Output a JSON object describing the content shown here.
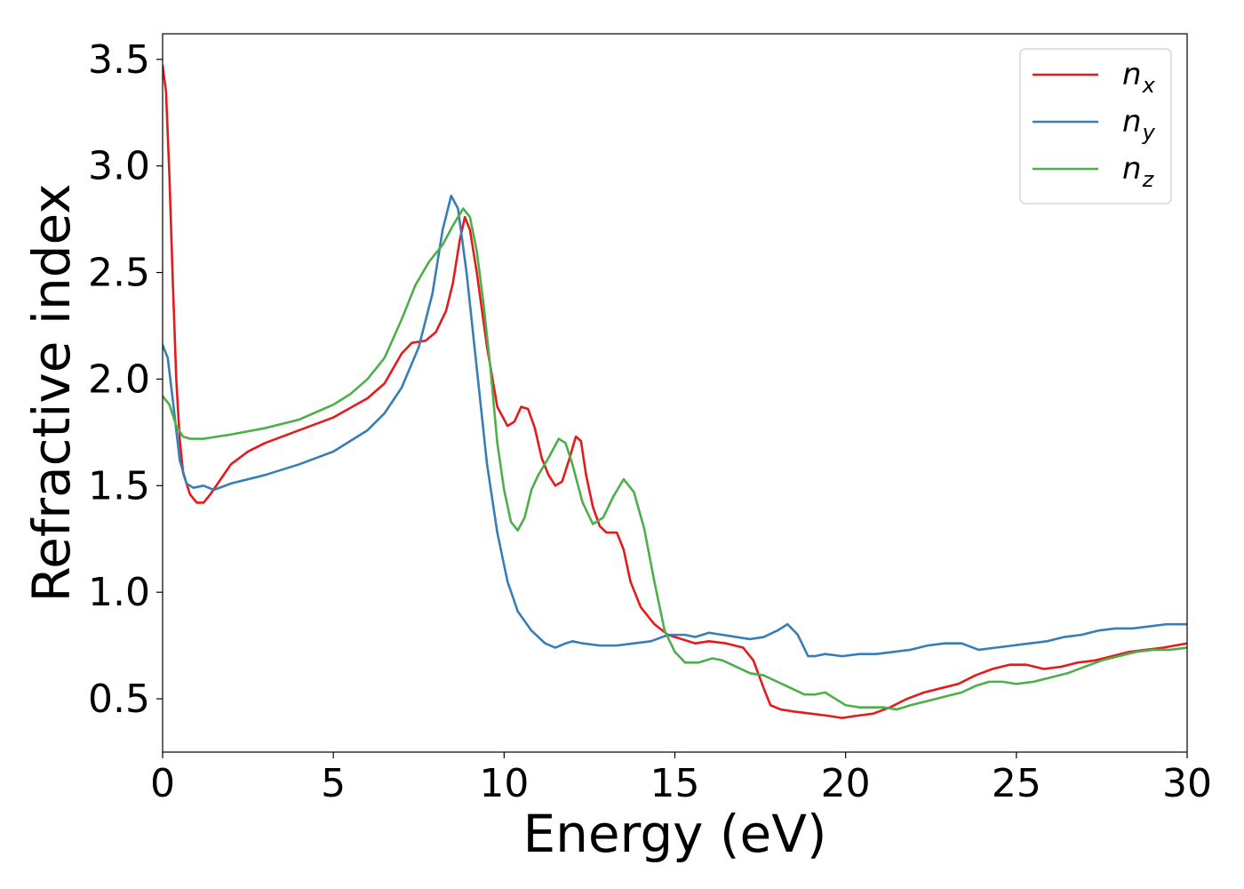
{
  "chart_data": {
    "type": "line",
    "xlabel": "Energy (eV)",
    "ylabel": "Refractive index",
    "xlim": [
      0,
      30
    ],
    "ylim": [
      0.25,
      3.62
    ],
    "xticks": [
      0,
      5,
      10,
      15,
      20,
      25,
      30
    ],
    "xtick_labels": [
      "0",
      "5",
      "10",
      "15",
      "20",
      "25",
      "30"
    ],
    "yticks": [
      0.5,
      1.0,
      1.5,
      2.0,
      2.5,
      3.0,
      3.5
    ],
    "ytick_labels": [
      "0.5",
      "1.0",
      "1.5",
      "2.0",
      "2.5",
      "3.0",
      "3.5"
    ],
    "grid": false,
    "legend_position": "top-right",
    "series": [
      {
        "name": "n",
        "subscript": "x",
        "color": "#e41a1c",
        "points": [
          [
            0,
            3.47
          ],
          [
            0.1,
            3.35
          ],
          [
            0.2,
            2.95
          ],
          [
            0.3,
            2.45
          ],
          [
            0.4,
            2.0
          ],
          [
            0.5,
            1.72
          ],
          [
            0.6,
            1.56
          ],
          [
            0.8,
            1.46
          ],
          [
            1.0,
            1.42
          ],
          [
            1.2,
            1.42
          ],
          [
            1.4,
            1.46
          ],
          [
            1.7,
            1.53
          ],
          [
            2.0,
            1.6
          ],
          [
            2.5,
            1.66
          ],
          [
            3,
            1.7
          ],
          [
            4,
            1.76
          ],
          [
            5,
            1.82
          ],
          [
            6,
            1.91
          ],
          [
            6.5,
            1.98
          ],
          [
            7.0,
            2.12
          ],
          [
            7.3,
            2.17
          ],
          [
            7.7,
            2.18
          ],
          [
            8.0,
            2.22
          ],
          [
            8.3,
            2.32
          ],
          [
            8.5,
            2.45
          ],
          [
            8.7,
            2.65
          ],
          [
            8.85,
            2.76
          ],
          [
            9.0,
            2.7
          ],
          [
            9.2,
            2.5
          ],
          [
            9.5,
            2.15
          ],
          [
            9.8,
            1.87
          ],
          [
            10.1,
            1.78
          ],
          [
            10.3,
            1.8
          ],
          [
            10.5,
            1.87
          ],
          [
            10.7,
            1.86
          ],
          [
            10.9,
            1.77
          ],
          [
            11.1,
            1.63
          ],
          [
            11.3,
            1.55
          ],
          [
            11.5,
            1.5
          ],
          [
            11.7,
            1.52
          ],
          [
            11.9,
            1.62
          ],
          [
            12.1,
            1.73
          ],
          [
            12.25,
            1.71
          ],
          [
            12.4,
            1.55
          ],
          [
            12.6,
            1.4
          ],
          [
            12.8,
            1.31
          ],
          [
            13.0,
            1.28
          ],
          [
            13.3,
            1.28
          ],
          [
            13.5,
            1.2
          ],
          [
            13.7,
            1.05
          ],
          [
            14.0,
            0.93
          ],
          [
            14.4,
            0.85
          ],
          [
            14.8,
            0.8
          ],
          [
            15.2,
            0.78
          ],
          [
            15.6,
            0.76
          ],
          [
            16.0,
            0.77
          ],
          [
            16.5,
            0.76
          ],
          [
            17.0,
            0.74
          ],
          [
            17.3,
            0.68
          ],
          [
            17.6,
            0.55
          ],
          [
            17.8,
            0.47
          ],
          [
            18.1,
            0.45
          ],
          [
            18.5,
            0.44
          ],
          [
            19.0,
            0.43
          ],
          [
            19.5,
            0.42
          ],
          [
            19.9,
            0.41
          ],
          [
            20.3,
            0.42
          ],
          [
            20.8,
            0.43
          ],
          [
            21.3,
            0.46
          ],
          [
            21.8,
            0.5
          ],
          [
            22.3,
            0.53
          ],
          [
            22.8,
            0.55
          ],
          [
            23.3,
            0.57
          ],
          [
            23.8,
            0.61
          ],
          [
            24.3,
            0.64
          ],
          [
            24.8,
            0.66
          ],
          [
            25.3,
            0.66
          ],
          [
            25.8,
            0.64
          ],
          [
            26.3,
            0.65
          ],
          [
            26.8,
            0.67
          ],
          [
            27.3,
            0.68
          ],
          [
            27.8,
            0.7
          ],
          [
            28.3,
            0.72
          ],
          [
            28.8,
            0.73
          ],
          [
            29.3,
            0.74
          ],
          [
            30,
            0.76
          ]
        ]
      },
      {
        "name": "n",
        "subscript": "y",
        "color": "#377eb8",
        "points": [
          [
            0,
            2.16
          ],
          [
            0.15,
            2.1
          ],
          [
            0.3,
            1.9
          ],
          [
            0.5,
            1.62
          ],
          [
            0.7,
            1.51
          ],
          [
            0.9,
            1.49
          ],
          [
            1.2,
            1.5
          ],
          [
            1.5,
            1.48
          ],
          [
            2,
            1.51
          ],
          [
            3,
            1.55
          ],
          [
            4,
            1.6
          ],
          [
            5,
            1.66
          ],
          [
            6,
            1.76
          ],
          [
            6.5,
            1.84
          ],
          [
            7.0,
            1.96
          ],
          [
            7.5,
            2.15
          ],
          [
            7.9,
            2.4
          ],
          [
            8.2,
            2.7
          ],
          [
            8.45,
            2.86
          ],
          [
            8.65,
            2.8
          ],
          [
            8.9,
            2.5
          ],
          [
            9.2,
            2.05
          ],
          [
            9.5,
            1.6
          ],
          [
            9.8,
            1.28
          ],
          [
            10.1,
            1.05
          ],
          [
            10.4,
            0.91
          ],
          [
            10.8,
            0.82
          ],
          [
            11.2,
            0.76
          ],
          [
            11.5,
            0.74
          ],
          [
            11.8,
            0.76
          ],
          [
            12.0,
            0.77
          ],
          [
            12.3,
            0.76
          ],
          [
            12.8,
            0.75
          ],
          [
            13.3,
            0.75
          ],
          [
            13.8,
            0.76
          ],
          [
            14.3,
            0.77
          ],
          [
            14.8,
            0.8
          ],
          [
            15.3,
            0.8
          ],
          [
            15.6,
            0.79
          ],
          [
            16.0,
            0.81
          ],
          [
            16.4,
            0.8
          ],
          [
            16.8,
            0.79
          ],
          [
            17.2,
            0.78
          ],
          [
            17.6,
            0.79
          ],
          [
            18.0,
            0.82
          ],
          [
            18.3,
            0.85
          ],
          [
            18.6,
            0.8
          ],
          [
            18.9,
            0.7
          ],
          [
            19.1,
            0.7
          ],
          [
            19.4,
            0.71
          ],
          [
            19.9,
            0.7
          ],
          [
            20.4,
            0.71
          ],
          [
            20.9,
            0.71
          ],
          [
            21.4,
            0.72
          ],
          [
            21.9,
            0.73
          ],
          [
            22.4,
            0.75
          ],
          [
            22.9,
            0.76
          ],
          [
            23.4,
            0.76
          ],
          [
            23.9,
            0.73
          ],
          [
            24.4,
            0.74
          ],
          [
            24.9,
            0.75
          ],
          [
            25.4,
            0.76
          ],
          [
            25.9,
            0.77
          ],
          [
            26.4,
            0.79
          ],
          [
            26.9,
            0.8
          ],
          [
            27.4,
            0.82
          ],
          [
            27.9,
            0.83
          ],
          [
            28.4,
            0.83
          ],
          [
            28.9,
            0.84
          ],
          [
            29.4,
            0.85
          ],
          [
            30,
            0.85
          ]
        ]
      },
      {
        "name": "n",
        "subscript": "z",
        "color": "#4daf4a",
        "points": [
          [
            0,
            1.92
          ],
          [
            0.2,
            1.88
          ],
          [
            0.4,
            1.78
          ],
          [
            0.6,
            1.73
          ],
          [
            0.8,
            1.72
          ],
          [
            1.2,
            1.72
          ],
          [
            1.6,
            1.73
          ],
          [
            2,
            1.74
          ],
          [
            3,
            1.77
          ],
          [
            4,
            1.81
          ],
          [
            5,
            1.88
          ],
          [
            5.5,
            1.93
          ],
          [
            6.0,
            2.0
          ],
          [
            6.5,
            2.1
          ],
          [
            7.0,
            2.28
          ],
          [
            7.4,
            2.44
          ],
          [
            7.8,
            2.55
          ],
          [
            8.2,
            2.63
          ],
          [
            8.5,
            2.72
          ],
          [
            8.8,
            2.8
          ],
          [
            9.0,
            2.76
          ],
          [
            9.2,
            2.6
          ],
          [
            9.4,
            2.35
          ],
          [
            9.6,
            2.05
          ],
          [
            9.8,
            1.7
          ],
          [
            10.0,
            1.48
          ],
          [
            10.2,
            1.33
          ],
          [
            10.4,
            1.29
          ],
          [
            10.6,
            1.35
          ],
          [
            10.8,
            1.48
          ],
          [
            11.0,
            1.55
          ],
          [
            11.3,
            1.63
          ],
          [
            11.6,
            1.72
          ],
          [
            11.8,
            1.7
          ],
          [
            12.0,
            1.6
          ],
          [
            12.3,
            1.42
          ],
          [
            12.6,
            1.32
          ],
          [
            12.9,
            1.35
          ],
          [
            13.2,
            1.45
          ],
          [
            13.5,
            1.53
          ],
          [
            13.8,
            1.47
          ],
          [
            14.1,
            1.3
          ],
          [
            14.4,
            1.05
          ],
          [
            14.7,
            0.82
          ],
          [
            15.0,
            0.72
          ],
          [
            15.3,
            0.67
          ],
          [
            15.7,
            0.67
          ],
          [
            16.1,
            0.69
          ],
          [
            16.4,
            0.68
          ],
          [
            16.8,
            0.65
          ],
          [
            17.2,
            0.62
          ],
          [
            17.6,
            0.61
          ],
          [
            18.0,
            0.58
          ],
          [
            18.4,
            0.55
          ],
          [
            18.8,
            0.52
          ],
          [
            19.1,
            0.52
          ],
          [
            19.4,
            0.53
          ],
          [
            19.7,
            0.5
          ],
          [
            20.0,
            0.47
          ],
          [
            20.4,
            0.46
          ],
          [
            20.8,
            0.46
          ],
          [
            21.1,
            0.46
          ],
          [
            21.5,
            0.45
          ],
          [
            21.9,
            0.47
          ],
          [
            22.4,
            0.49
          ],
          [
            22.9,
            0.51
          ],
          [
            23.4,
            0.53
          ],
          [
            23.8,
            0.56
          ],
          [
            24.2,
            0.58
          ],
          [
            24.6,
            0.58
          ],
          [
            25.0,
            0.57
          ],
          [
            25.5,
            0.58
          ],
          [
            26.0,
            0.6
          ],
          [
            26.5,
            0.62
          ],
          [
            27.0,
            0.65
          ],
          [
            27.5,
            0.68
          ],
          [
            28.0,
            0.7
          ],
          [
            28.5,
            0.72
          ],
          [
            29.0,
            0.73
          ],
          [
            29.5,
            0.73
          ],
          [
            30,
            0.74
          ]
        ]
      }
    ]
  }
}
